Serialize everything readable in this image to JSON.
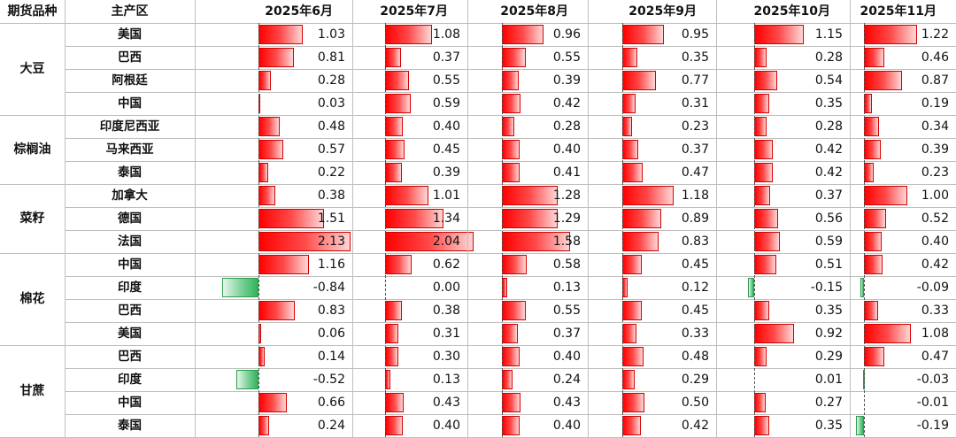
{
  "chart_data": {
    "type": "table",
    "title": "",
    "headers": {
      "commodity": "期货品种",
      "region": "主产区",
      "months": [
        "2025年6月",
        "2025年7月",
        "2025年8月",
        "2025年9月",
        "2025年10月",
        "2025年11月"
      ]
    },
    "groups": [
      {
        "commodity": "大豆",
        "rows": [
          {
            "region": "美国",
            "values": [
              1.03,
              1.08,
              0.96,
              0.95,
              1.15,
              1.22
            ],
            "labels": [
              "1.03",
              "1.08",
              "0.96",
              "0.95",
              "1.15",
              "1.22"
            ]
          },
          {
            "region": "巴西",
            "values": [
              0.81,
              0.37,
              0.55,
              0.35,
              0.28,
              0.46
            ],
            "labels": [
              "0.81",
              "0.37",
              "0.55",
              "0.35",
              "0.28",
              "0.46"
            ]
          },
          {
            "region": "阿根廷",
            "values": [
              0.28,
              0.55,
              0.39,
              0.77,
              0.54,
              0.87
            ],
            "labels": [
              "0.28",
              "0.55",
              "0.39",
              "0.77",
              "0.54",
              "0.87"
            ]
          },
          {
            "region": "中国",
            "values": [
              0.03,
              0.59,
              0.42,
              0.31,
              0.35,
              0.19
            ],
            "labels": [
              "0.03",
              "0.59",
              "0.42",
              "0.31",
              "0.35",
              "0.19"
            ]
          }
        ]
      },
      {
        "commodity": "棕榈油",
        "rows": [
          {
            "region": "印度尼西亚",
            "values": [
              0.48,
              0.4,
              0.28,
              0.23,
              0.28,
              0.34
            ],
            "labels": [
              "0.48",
              "0.40",
              "0.28",
              "0.23",
              "0.28",
              "0.34"
            ]
          },
          {
            "region": "马来西亚",
            "values": [
              0.57,
              0.45,
              0.4,
              0.37,
              0.42,
              0.39
            ],
            "labels": [
              "0.57",
              "0.45",
              "0.40",
              "0.37",
              "0.42",
              "0.39"
            ]
          },
          {
            "region": "泰国",
            "values": [
              0.22,
              0.39,
              0.41,
              0.47,
              0.42,
              0.23
            ],
            "labels": [
              "0.22",
              "0.39",
              "0.41",
              "0.47",
              "0.42",
              "0.23"
            ]
          }
        ]
      },
      {
        "commodity": "菜籽",
        "rows": [
          {
            "region": "加拿大",
            "values": [
              0.38,
              1.01,
              1.28,
              1.18,
              0.37,
              1.0
            ],
            "labels": [
              "0.38",
              "1.01",
              "1.28",
              "1.18",
              "0.37",
              "1.00"
            ]
          },
          {
            "region": "德国",
            "values": [
              1.51,
              1.34,
              1.29,
              0.89,
              0.56,
              0.52
            ],
            "labels": [
              "1.51",
              "1.34",
              "1.29",
              "0.89",
              "0.56",
              "0.52"
            ]
          },
          {
            "region": "法国",
            "values": [
              2.13,
              2.04,
              1.58,
              0.83,
              0.59,
              0.4
            ],
            "labels": [
              "2.13",
              "2.04",
              "1.58",
              "0.83",
              "0.59",
              "0.40"
            ]
          }
        ]
      },
      {
        "commodity": "棉花",
        "rows": [
          {
            "region": "中国",
            "values": [
              1.16,
              0.62,
              0.58,
              0.45,
              0.51,
              0.42
            ],
            "labels": [
              "1.16",
              "0.62",
              "0.58",
              "0.45",
              "0.51",
              "0.42"
            ]
          },
          {
            "region": "印度",
            "values": [
              -0.84,
              0.0,
              0.13,
              0.12,
              -0.15,
              -0.09
            ],
            "labels": [
              "-0.84",
              "0.00",
              "0.13",
              "0.12",
              "-0.15",
              "-0.09"
            ]
          },
          {
            "region": "巴西",
            "values": [
              0.83,
              0.38,
              0.55,
              0.45,
              0.35,
              0.33
            ],
            "labels": [
              "0.83",
              "0.38",
              "0.55",
              "0.45",
              "0.35",
              "0.33"
            ]
          },
          {
            "region": "美国",
            "values": [
              0.06,
              0.31,
              0.37,
              0.33,
              0.92,
              1.08
            ],
            "labels": [
              "0.06",
              "0.31",
              "0.37",
              "0.33",
              "0.92",
              "1.08"
            ]
          }
        ]
      },
      {
        "commodity": "甘蔗",
        "rows": [
          {
            "region": "巴西",
            "values": [
              0.14,
              0.3,
              0.4,
              0.48,
              0.29,
              0.47
            ],
            "labels": [
              "0.14",
              "0.30",
              "0.40",
              "0.48",
              "0.29",
              "0.47"
            ]
          },
          {
            "region": "印度",
            "values": [
              -0.52,
              0.13,
              0.24,
              0.29,
              0.01,
              -0.03
            ],
            "labels": [
              "-0.52",
              "0.13",
              "0.24",
              "0.29",
              "0.01",
              "-0.03"
            ]
          },
          {
            "region": "中国",
            "values": [
              0.66,
              0.43,
              0.43,
              0.5,
              0.27,
              -0.01
            ],
            "labels": [
              "0.66",
              "0.43",
              "0.43",
              "0.50",
              "0.27",
              "-0.01"
            ]
          },
          {
            "region": "泰国",
            "values": [
              0.24,
              0.4,
              0.4,
              0.42,
              0.35,
              -0.19
            ],
            "labels": [
              "0.24",
              "0.40",
              "0.40",
              "0.42",
              "0.35",
              "-0.19"
            ]
          }
        ]
      }
    ],
    "colors": {
      "positive": "#ff0000",
      "negative": "#2fb35a",
      "grid": "#bfbfbf"
    }
  }
}
